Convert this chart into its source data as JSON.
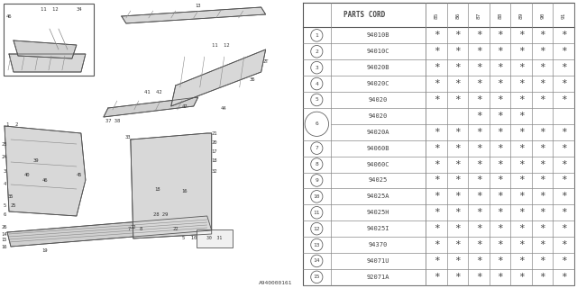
{
  "bg_color": "#ffffff",
  "diagram_id": "A940000161",
  "header_cols": [
    "85",
    "86",
    "87",
    "88",
    "89",
    "90",
    "91"
  ],
  "display_rows": [
    [
      "1",
      "94010B",
      [
        1,
        1,
        1,
        1,
        1,
        1,
        1
      ],
      null,
      null
    ],
    [
      "2",
      "94010C",
      [
        1,
        1,
        1,
        1,
        1,
        1,
        1
      ],
      null,
      null
    ],
    [
      "3",
      "94020B",
      [
        1,
        1,
        1,
        1,
        1,
        1,
        1
      ],
      null,
      null
    ],
    [
      "4",
      "94020C",
      [
        1,
        1,
        1,
        1,
        1,
        1,
        1
      ],
      null,
      null
    ],
    [
      "5",
      "94020",
      [
        1,
        1,
        1,
        1,
        1,
        1,
        1
      ],
      null,
      null
    ],
    [
      "6",
      "94020",
      [
        0,
        0,
        1,
        1,
        1,
        0,
        0
      ],
      "94020A",
      [
        1,
        1,
        1,
        1,
        1,
        1,
        1
      ]
    ],
    [
      "7",
      "94060B",
      [
        1,
        1,
        1,
        1,
        1,
        1,
        1
      ],
      null,
      null
    ],
    [
      "8",
      "94060C",
      [
        1,
        1,
        1,
        1,
        1,
        1,
        1
      ],
      null,
      null
    ],
    [
      "9",
      "94025",
      [
        1,
        1,
        1,
        1,
        1,
        1,
        1
      ],
      null,
      null
    ],
    [
      "10",
      "94025A",
      [
        1,
        1,
        1,
        1,
        1,
        1,
        1
      ],
      null,
      null
    ],
    [
      "11",
      "94025H",
      [
        1,
        1,
        1,
        1,
        1,
        1,
        1
      ],
      null,
      null
    ],
    [
      "12",
      "94025I",
      [
        1,
        1,
        1,
        1,
        1,
        1,
        1
      ],
      null,
      null
    ],
    [
      "13",
      "94370",
      [
        1,
        1,
        1,
        1,
        1,
        1,
        1
      ],
      null,
      null
    ],
    [
      "14",
      "94071U",
      [
        1,
        1,
        1,
        1,
        1,
        1,
        1
      ],
      null,
      null
    ],
    [
      "15",
      "92071A",
      [
        1,
        1,
        1,
        1,
        1,
        1,
        1
      ],
      null,
      null
    ]
  ]
}
